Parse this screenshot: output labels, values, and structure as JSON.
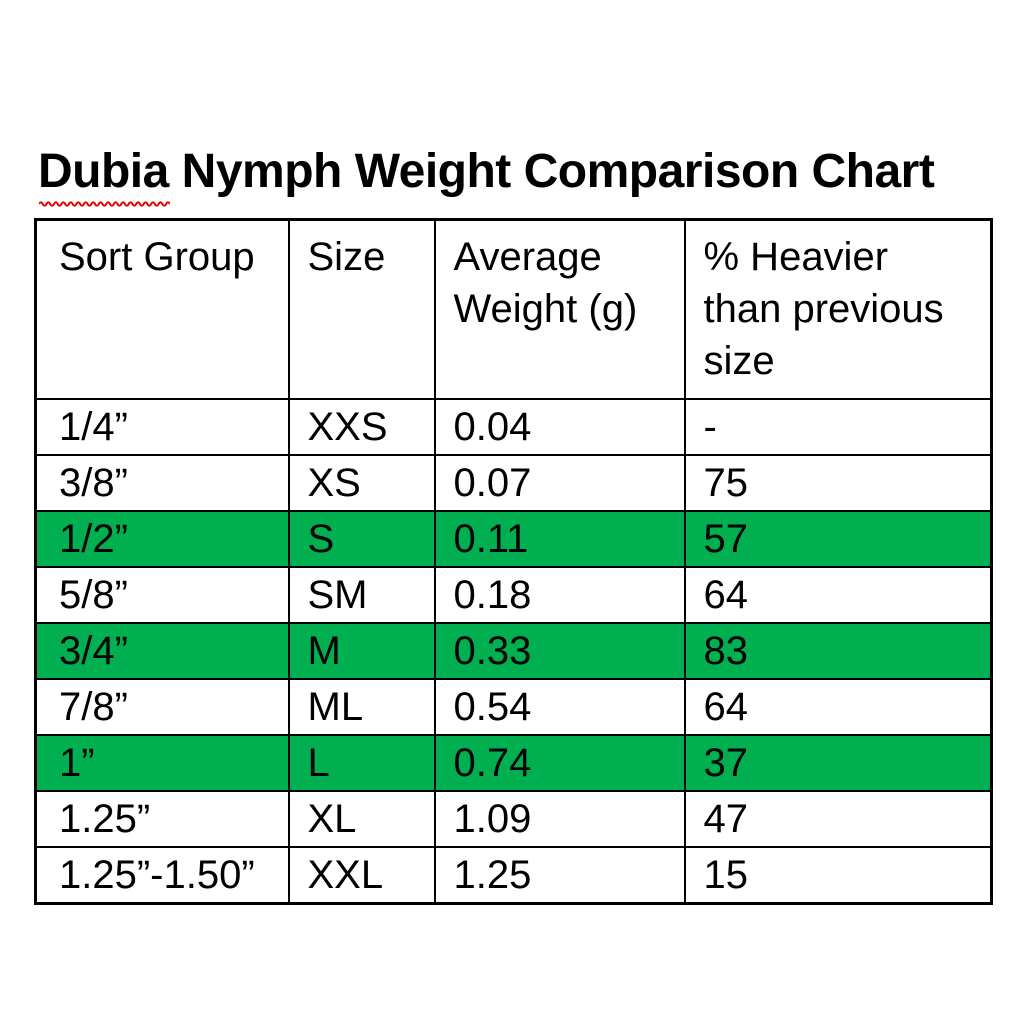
{
  "title": {
    "word1": "Dubia",
    "rest": " Nymph Weight Comparison Chart"
  },
  "colors": {
    "highlight_green": "#00B050",
    "squiggle_red": "#E60000",
    "border_black": "#000000",
    "text_black": "#000000",
    "page_background": "#FFFFFF"
  },
  "table": {
    "headers": [
      "Sort Group",
      "Size",
      "Average\nWeight (g)",
      "% Heavier\nthan previous\nsize"
    ],
    "column_keys": [
      "sort_group",
      "size",
      "avg_weight_g",
      "pct_heavier"
    ],
    "rows": [
      {
        "sort_group": "1/4”",
        "size": "XXS",
        "avg_weight_g": "0.04",
        "pct_heavier": "-",
        "highlighted": false
      },
      {
        "sort_group": "3/8”",
        "size": "XS",
        "avg_weight_g": "0.07",
        "pct_heavier": "75",
        "highlighted": false
      },
      {
        "sort_group": "1/2”",
        "size": "S",
        "avg_weight_g": "0.11",
        "pct_heavier": "57",
        "highlighted": true
      },
      {
        "sort_group": "5/8”",
        "size": "SM",
        "avg_weight_g": "0.18",
        "pct_heavier": "64",
        "highlighted": false
      },
      {
        "sort_group": "3/4”",
        "size": "M",
        "avg_weight_g": "0.33",
        "pct_heavier": "83",
        "highlighted": true
      },
      {
        "sort_group": "7/8”",
        "size": "ML",
        "avg_weight_g": "0.54",
        "pct_heavier": "64",
        "highlighted": false
      },
      {
        "sort_group": "1”",
        "size": "L",
        "avg_weight_g": "0.74",
        "pct_heavier": "37",
        "highlighted": true
      },
      {
        "sort_group": "1.25”",
        "size": "XL",
        "avg_weight_g": "1.09",
        "pct_heavier": "47",
        "highlighted": false
      },
      {
        "sort_group": "1.25”-1.50”",
        "size": "XXL",
        "avg_weight_g": "1.25",
        "pct_heavier": "15",
        "highlighted": false
      }
    ]
  }
}
